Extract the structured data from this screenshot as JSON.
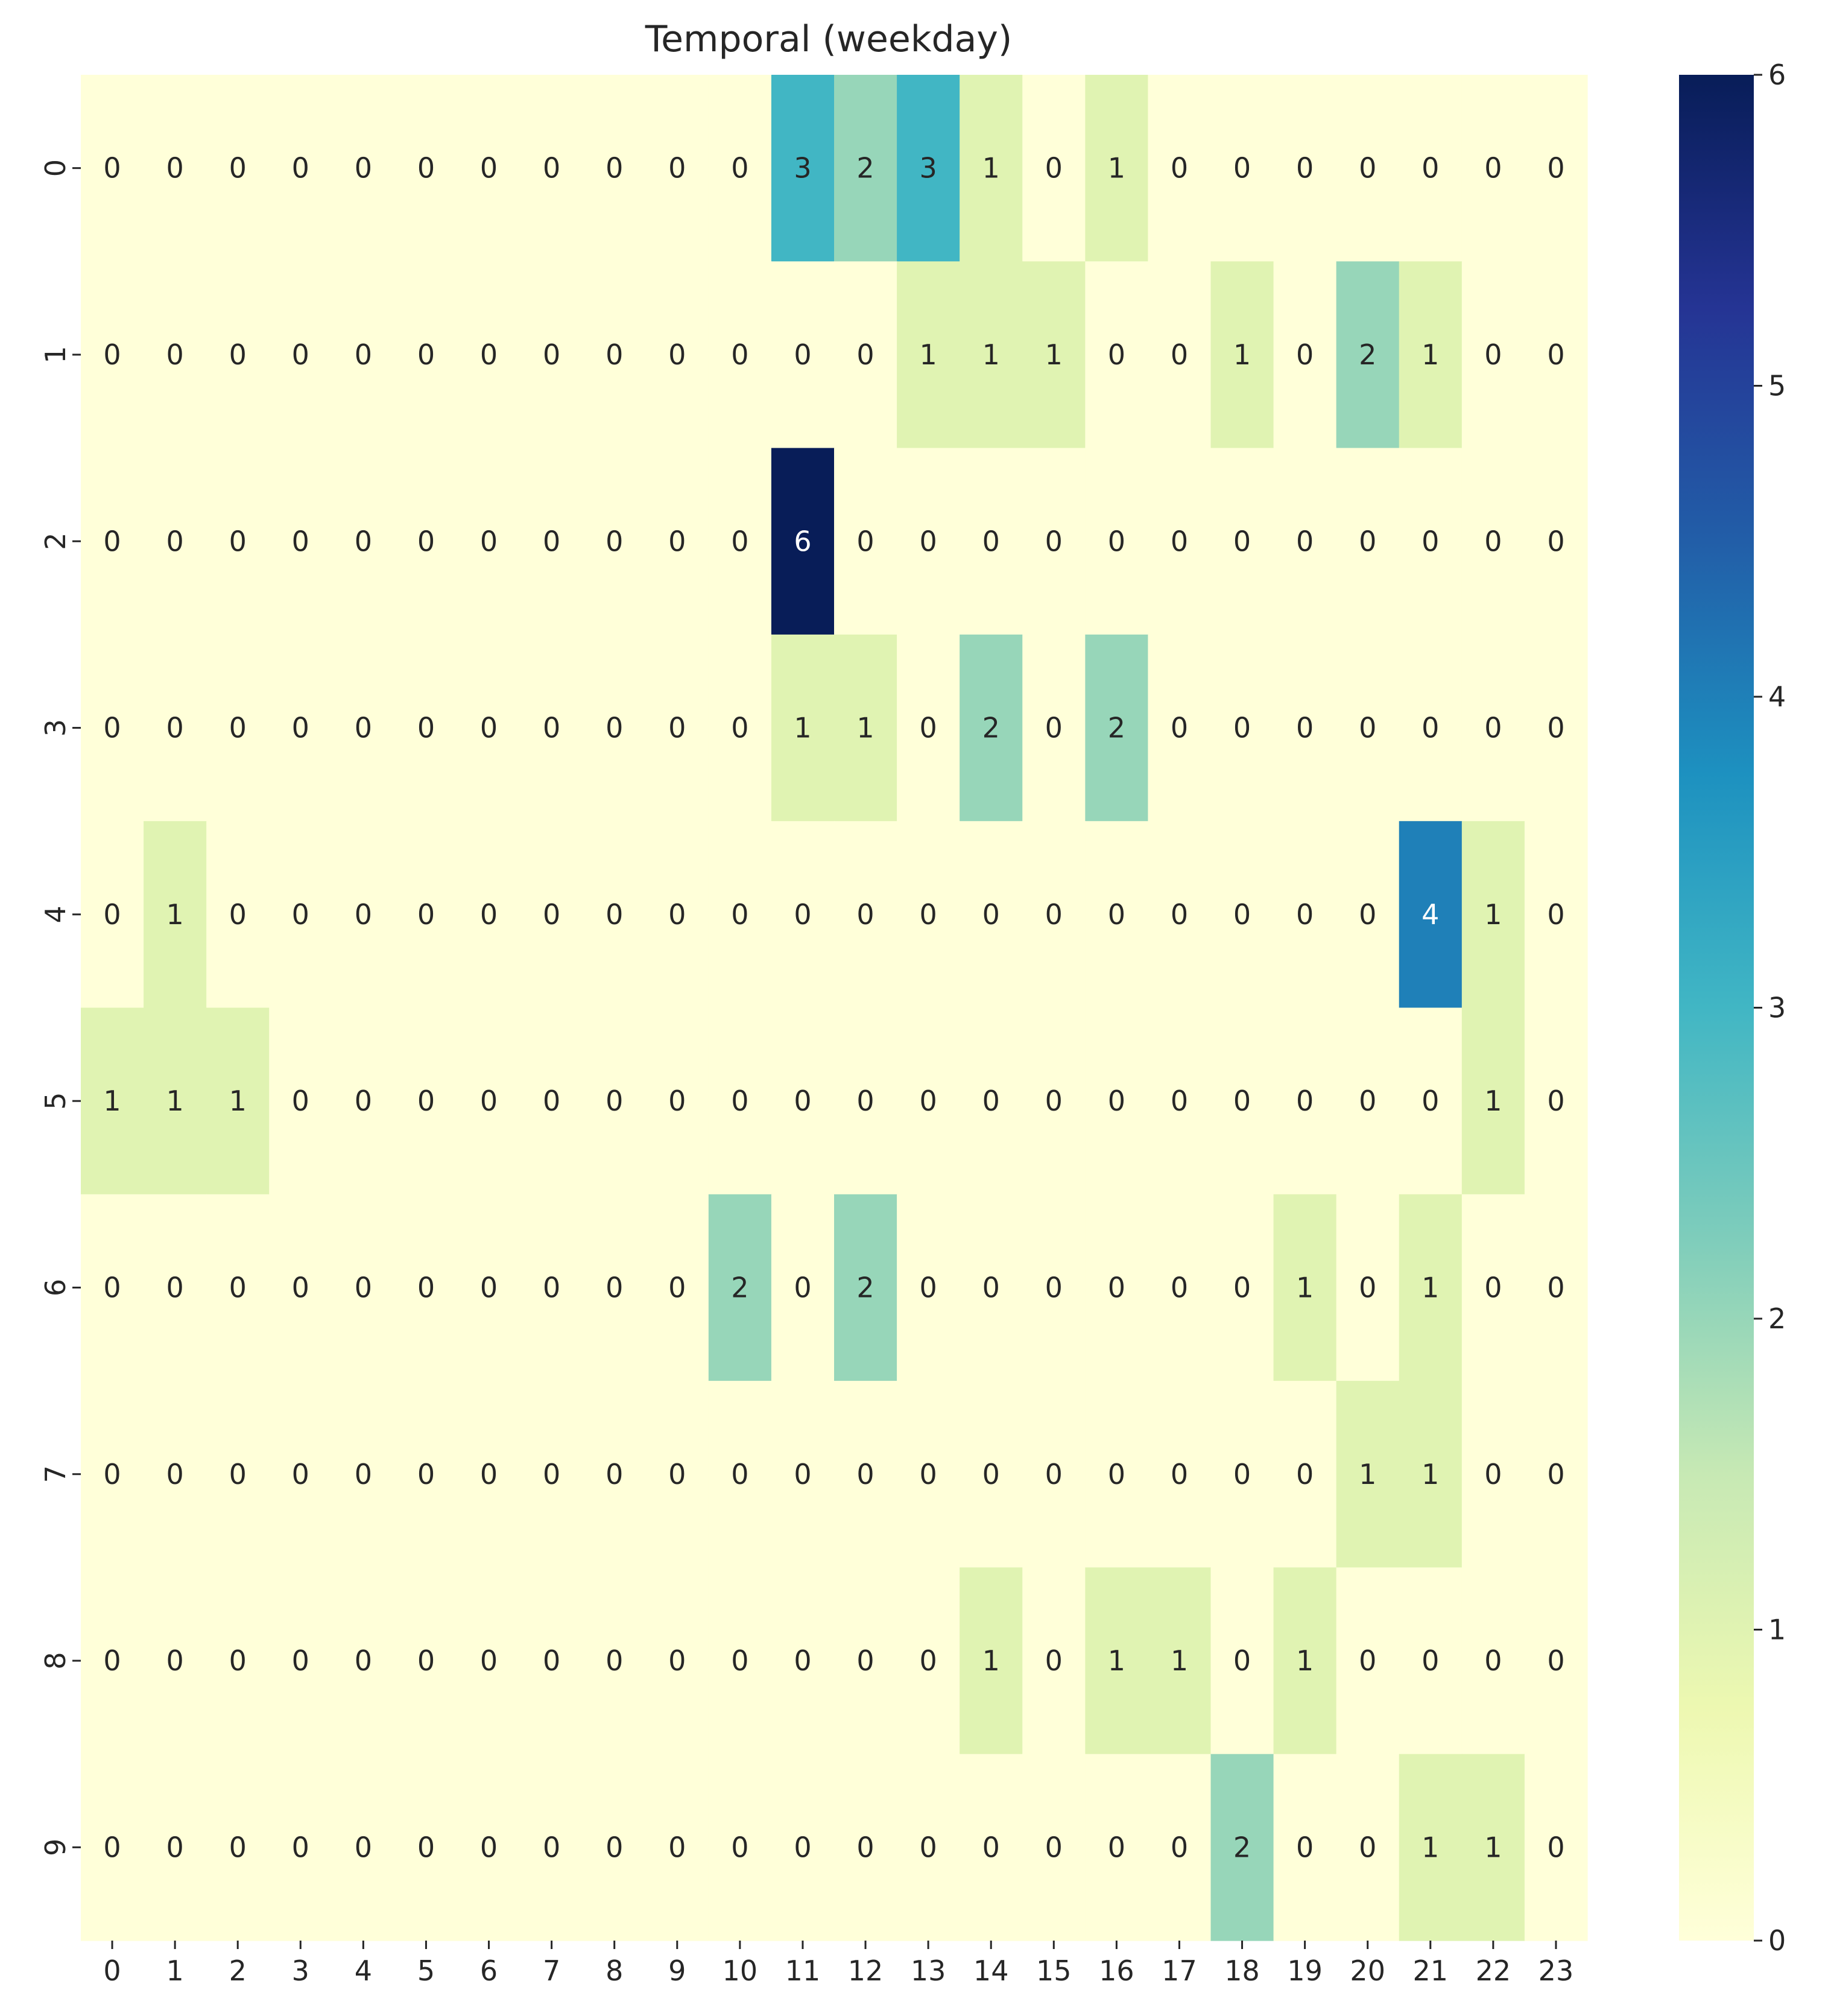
{
  "chart_data": {
    "type": "heatmap",
    "title": "Temporal (weekday)",
    "xlabel": "",
    "ylabel": "",
    "x_categories": [
      "0",
      "1",
      "2",
      "3",
      "4",
      "5",
      "6",
      "7",
      "8",
      "9",
      "10",
      "11",
      "12",
      "13",
      "14",
      "15",
      "16",
      "17",
      "18",
      "19",
      "20",
      "21",
      "22",
      "23"
    ],
    "y_categories": [
      "0",
      "1",
      "2",
      "3",
      "4",
      "5",
      "6",
      "7",
      "8",
      "9"
    ],
    "values": [
      [
        0,
        0,
        0,
        0,
        0,
        0,
        0,
        0,
        0,
        0,
        0,
        3,
        2,
        3,
        1,
        0,
        1,
        0,
        0,
        0,
        0,
        0,
        0,
        0
      ],
      [
        0,
        0,
        0,
        0,
        0,
        0,
        0,
        0,
        0,
        0,
        0,
        0,
        0,
        1,
        1,
        1,
        0,
        0,
        1,
        0,
        2,
        1,
        0,
        0
      ],
      [
        0,
        0,
        0,
        0,
        0,
        0,
        0,
        0,
        0,
        0,
        0,
        6,
        0,
        0,
        0,
        0,
        0,
        0,
        0,
        0,
        0,
        0,
        0,
        0
      ],
      [
        0,
        0,
        0,
        0,
        0,
        0,
        0,
        0,
        0,
        0,
        0,
        1,
        1,
        0,
        2,
        0,
        2,
        0,
        0,
        0,
        0,
        0,
        0,
        0
      ],
      [
        0,
        1,
        0,
        0,
        0,
        0,
        0,
        0,
        0,
        0,
        0,
        0,
        0,
        0,
        0,
        0,
        0,
        0,
        0,
        0,
        0,
        4,
        1,
        0
      ],
      [
        1,
        1,
        1,
        0,
        0,
        0,
        0,
        0,
        0,
        0,
        0,
        0,
        0,
        0,
        0,
        0,
        0,
        0,
        0,
        0,
        0,
        0,
        1,
        0
      ],
      [
        0,
        0,
        0,
        0,
        0,
        0,
        0,
        0,
        0,
        0,
        2,
        0,
        2,
        0,
        0,
        0,
        0,
        0,
        0,
        1,
        0,
        1,
        0,
        0
      ],
      [
        0,
        0,
        0,
        0,
        0,
        0,
        0,
        0,
        0,
        0,
        0,
        0,
        0,
        0,
        0,
        0,
        0,
        0,
        0,
        0,
        1,
        1,
        0,
        0
      ],
      [
        0,
        0,
        0,
        0,
        0,
        0,
        0,
        0,
        0,
        0,
        0,
        0,
        0,
        0,
        1,
        0,
        1,
        1,
        0,
        1,
        0,
        0,
        0,
        0
      ],
      [
        0,
        0,
        0,
        0,
        0,
        0,
        0,
        0,
        0,
        0,
        0,
        0,
        0,
        0,
        0,
        0,
        0,
        0,
        2,
        0,
        0,
        1,
        1,
        0
      ]
    ],
    "color_range": [
      0,
      6
    ],
    "colormap": "YlGnBu",
    "colorbar_ticks": [
      "0",
      "1",
      "2",
      "3",
      "4",
      "5",
      "6"
    ],
    "annotated": true,
    "legend": "colorbar-right",
    "grid": false
  }
}
